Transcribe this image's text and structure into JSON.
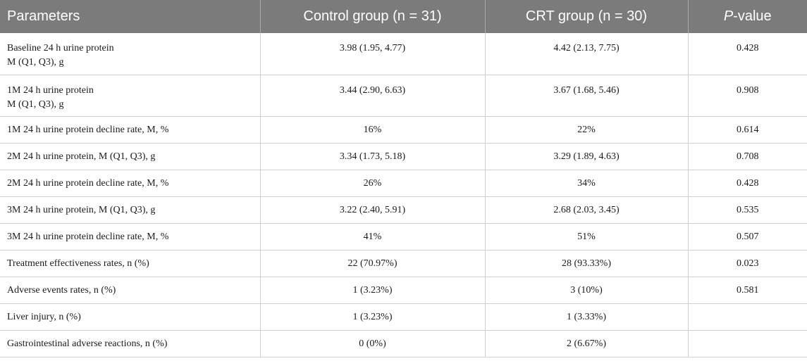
{
  "table": {
    "headers": {
      "parameters": "Parameters",
      "control": "Control group (n = 31)",
      "crt": "CRT group (n = 30)",
      "p_italic": "P",
      "p_rest": "-value"
    },
    "rows": [
      {
        "param_line1": "Baseline 24 h urine protein",
        "param_line2": "M (Q1, Q3), g",
        "control": "3.98 (1.95, 4.77)",
        "crt": "4.42 (2.13, 7.75)",
        "p": "0.428"
      },
      {
        "param_line1": "1M 24 h urine protein",
        "param_line2": "M (Q1, Q3), g",
        "control": "3.44 (2.90, 6.63)",
        "crt": "3.67 (1.68, 5.46)",
        "p": "0.908"
      },
      {
        "param_line1": "1M 24 h urine protein decline rate, M, %",
        "control": "16%",
        "crt": "22%",
        "p": "0.614"
      },
      {
        "param_line1": "2M 24 h urine protein, M (Q1, Q3), g",
        "control": "3.34 (1.73, 5.18)",
        "crt": "3.29 (1.89, 4.63)",
        "p": "0.708"
      },
      {
        "param_line1": "2M 24 h urine protein decline rate, M, %",
        "control": "26%",
        "crt": "34%",
        "p": "0.428"
      },
      {
        "param_line1": "3M 24 h urine protein, M (Q1, Q3), g",
        "control": "3.22 (2.40, 5.91)",
        "crt": "2.68 (2.03, 3.45)",
        "p": "0.535"
      },
      {
        "param_line1": "3M 24 h urine protein decline rate, M, %",
        "control": "41%",
        "crt": "51%",
        "p": "0.507"
      },
      {
        "param_line1": "Treatment effectiveness rates, n (%)",
        "control": "22 (70.97%)",
        "crt": "28 (93.33%)",
        "p": "0.023"
      },
      {
        "param_line1": "Adverse events rates, n (%)",
        "control": "1 (3.23%)",
        "crt": "3 (10%)",
        "p": "0.581"
      },
      {
        "param_line1": "Liver injury, n (%)",
        "control": "1 (3.23%)",
        "crt": "1 (3.33%)",
        "p": ""
      },
      {
        "param_line1": "Gastrointestinal adverse reactions, n (%)",
        "control": "0 (0%)",
        "crt": "2 (6.67%)",
        "p": ""
      }
    ]
  }
}
